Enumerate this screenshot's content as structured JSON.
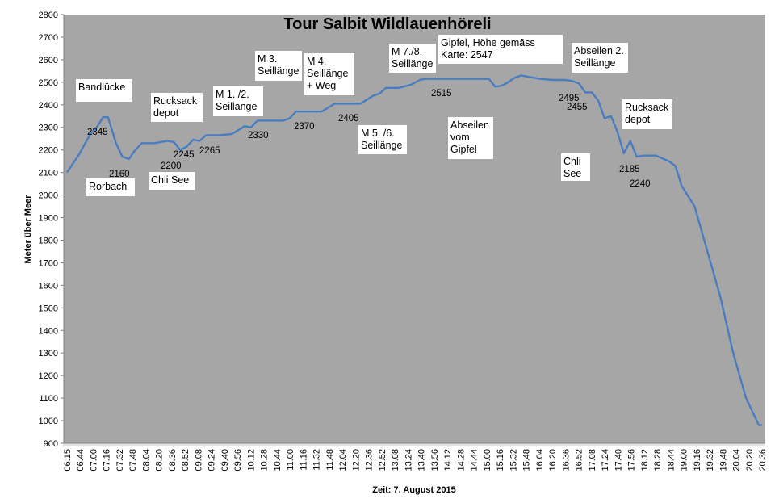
{
  "chart_data": {
    "type": "line",
    "title": "Tour Salbit Wildlauenhöreli",
    "xlabel": "Zeit: 7. August 2015",
    "ylabel": "Meter über Meer",
    "ylim": [
      900,
      2800
    ],
    "y_ticks": [
      900,
      1000,
      1100,
      1200,
      1300,
      1400,
      1500,
      1600,
      1700,
      1800,
      1900,
      2000,
      2100,
      2200,
      2300,
      2400,
      2500,
      2600,
      2700,
      2800
    ],
    "x_ticks": [
      "06.15",
      "06.44",
      "07.00",
      "07.16",
      "07.32",
      "07.48",
      "08.04",
      "08.20",
      "08.36",
      "08.52",
      "09.08",
      "09.24",
      "09.40",
      "09.56",
      "10.12",
      "10.28",
      "10.44",
      "11.00",
      "11.16",
      "11.32",
      "11.48",
      "12.04",
      "12.20",
      "12.36",
      "12.52",
      "13.08",
      "13.24",
      "13.40",
      "13.56",
      "14.12",
      "14.28",
      "14.44",
      "15.00",
      "15.16",
      "15.32",
      "15.48",
      "16.04",
      "16.20",
      "16.36",
      "16.52",
      "17.08",
      "17.24",
      "17.40",
      "17.56",
      "18.12",
      "18.28",
      "18.44",
      "19.00",
      "19.16",
      "19.32",
      "19.48",
      "20.04",
      "20.20",
      "20.36"
    ],
    "grid": false,
    "line_color": "#4a7dc0",
    "plot_background": "#a6a6a6",
    "series": [
      {
        "x": [
          "06.15",
          "06.30",
          "06.44",
          "06.52",
          "07.00",
          "07.06",
          "07.10",
          "07.16",
          "07.24",
          "07.32",
          "07.40",
          "07.48",
          "08.04",
          "08.20",
          "08.28",
          "08.36",
          "08.44",
          "08.52",
          "09.00",
          "09.08",
          "09.24",
          "09.40",
          "09.56",
          "10.04",
          "10.12",
          "10.28",
          "10.44",
          "10.52",
          "11.00",
          "11.16",
          "11.32",
          "11.48",
          "11.56",
          "12.04",
          "12.20",
          "12.36",
          "12.44",
          "12.52",
          "13.08",
          "13.24",
          "13.34",
          "13.40",
          "13.56",
          "14.12",
          "14.28",
          "14.44",
          "15.00",
          "15.08",
          "15.16",
          "15.24",
          "15.32",
          "15.40",
          "15.48",
          "16.04",
          "16.20",
          "16.36",
          "16.44",
          "16.52",
          "17.00",
          "17.08",
          "17.16",
          "17.24",
          "17.32",
          "17.40",
          "17.48",
          "17.56",
          "18.04",
          "18.12",
          "18.28",
          "18.44",
          "18.52",
          "19.00",
          "19.16",
          "19.32",
          "19.48",
          "20.04",
          "20.20",
          "20.36",
          "20.40"
        ],
        "values": [
          2100,
          2180,
          2270,
          2300,
          2345,
          2345,
          2300,
          2230,
          2170,
          2160,
          2200,
          2230,
          2230,
          2240,
          2235,
          2200,
          2215,
          2245,
          2240,
          2265,
          2265,
          2270,
          2305,
          2300,
          2330,
          2330,
          2330,
          2340,
          2370,
          2370,
          2370,
          2405,
          2405,
          2405,
          2405,
          2440,
          2450,
          2475,
          2475,
          2490,
          2510,
          2515,
          2515,
          2515,
          2515,
          2515,
          2515,
          2480,
          2485,
          2500,
          2520,
          2530,
          2525,
          2515,
          2510,
          2510,
          2505,
          2495,
          2455,
          2455,
          2420,
          2340,
          2350,
          2280,
          2185,
          2240,
          2170,
          2175,
          2175,
          2150,
          2130,
          2040,
          1950,
          1750,
          1550,
          1300,
          1100,
          980,
          980
        ]
      }
    ],
    "annotations": [
      {
        "text": [
          "Bandlücke"
        ]
      },
      {
        "text": [
          "Rorbach"
        ]
      },
      {
        "text": [
          "Rucksack",
          "depot"
        ]
      },
      {
        "text": [
          "Chli See"
        ]
      },
      {
        "text": [
          "M 1. /2.",
          "Seillänge"
        ]
      },
      {
        "text": [
          "M 3.",
          "Seillänge"
        ]
      },
      {
        "text": [
          "M 4.",
          "Seillänge",
          "+ Weg"
        ]
      },
      {
        "text": [
          "M 5. /6.",
          "Seillänge"
        ]
      },
      {
        "text": [
          "M 7./8.",
          "Seillänge"
        ]
      },
      {
        "text": [
          "Gipfel, Höhe gemäss",
          "Karte: 2547"
        ]
      },
      {
        "text": [
          "Abseilen",
          "vom",
          "Gipfel"
        ]
      },
      {
        "text": [
          "Abseilen 2.",
          "Seillänge"
        ]
      },
      {
        "text": [
          "Chli",
          "See"
        ]
      },
      {
        "text": [
          "Rucksack",
          "depot"
        ]
      }
    ],
    "data_labels": [
      "2345",
      "2160",
      "2200",
      "2245",
      "2265",
      "2330",
      "2370",
      "2405",
      "2515",
      "2495",
      "2455",
      "2185",
      "2240"
    ]
  }
}
